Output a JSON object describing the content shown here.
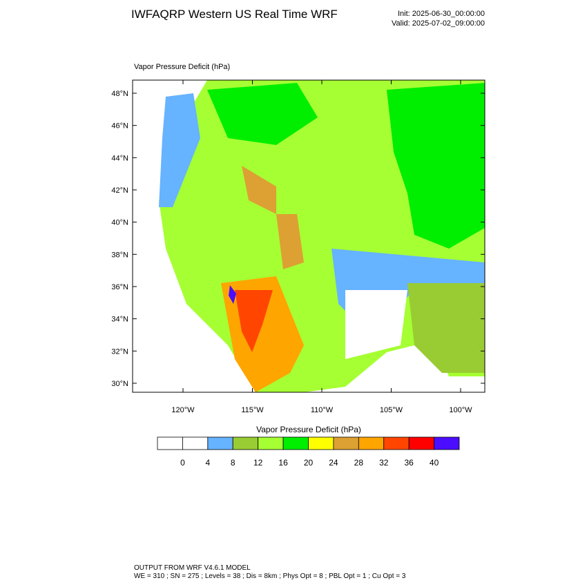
{
  "header": {
    "title": "IWFAQRP Western US Real Time WRF",
    "init": "Init: 2025-06-30_00:00:00",
    "valid": "Valid: 2025-07-02_09:00:00"
  },
  "map": {
    "title": "Vapor Pressure Deficit   (hPa)",
    "lat_ticks": [
      {
        "value": 48,
        "label": "48°N"
      },
      {
        "value": 46,
        "label": "46°N"
      },
      {
        "value": 44,
        "label": "44°N"
      },
      {
        "value": 42,
        "label": "42°N"
      },
      {
        "value": 40,
        "label": "40°N"
      },
      {
        "value": 38,
        "label": "38°N"
      },
      {
        "value": 36,
        "label": "36°N"
      },
      {
        "value": 34,
        "label": "34°N"
      },
      {
        "value": 32,
        "label": "32°N"
      },
      {
        "value": 30,
        "label": "30°N"
      }
    ],
    "lon_ticks": [
      {
        "value": -120,
        "label": "120°W"
      },
      {
        "value": -115,
        "label": "115°W"
      },
      {
        "value": -110,
        "label": "110°W"
      },
      {
        "value": -105,
        "label": "105°W"
      },
      {
        "value": -100,
        "label": "100°W"
      }
    ]
  },
  "colorbar": {
    "title": "Vapor Pressure Deficit  (hPa)",
    "levels": [
      0,
      4,
      8,
      12,
      16,
      20,
      24,
      28,
      32,
      36,
      40
    ],
    "colors": [
      "#ffffff",
      "#ffffff",
      "#66b3ff",
      "#99cc33",
      "#a6ff33",
      "#00ee00",
      "#ffff00",
      "#dda033",
      "#ffa500",
      "#ff4500",
      "#ff0000",
      "#4b0dff"
    ]
  },
  "footer": {
    "line1": "OUTPUT FROM WRF V4.6.1 MODEL",
    "line2": "WE = 310 ; SN = 275 ; Levels = 38 ; Dis = 8km ; Phys Opt = 8 ; PBL Opt = 1 ; Cu Opt = 3"
  }
}
